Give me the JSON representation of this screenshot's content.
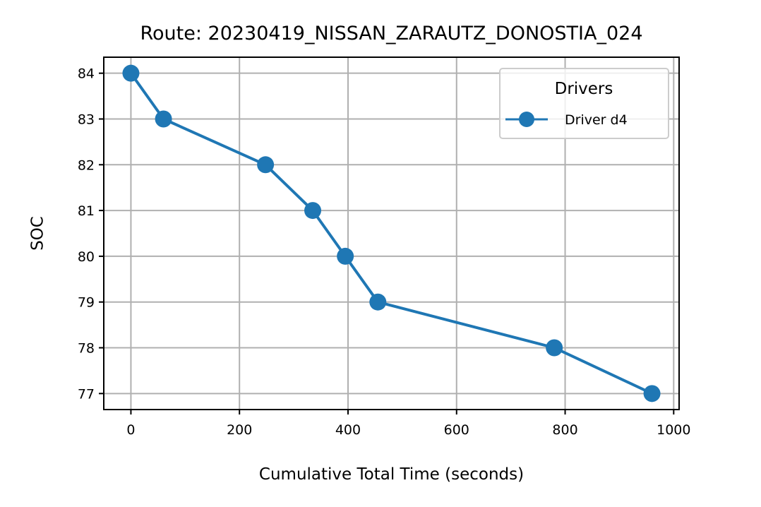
{
  "chart_data": {
    "type": "line",
    "title": "Route: 20230419_NISSAN_ZARAUTZ_DONOSTIA_024",
    "xlabel": "Cumulative Total Time (seconds)",
    "ylabel": "SOC",
    "xlim": [
      -50,
      1010
    ],
    "ylim": [
      76.65,
      84.35
    ],
    "xticks": [
      0,
      200,
      400,
      600,
      800,
      1000
    ],
    "yticks": [
      77,
      78,
      79,
      80,
      81,
      82,
      83,
      84
    ],
    "grid": true,
    "legend": {
      "title": "Drivers",
      "placement": "top-right"
    },
    "series": [
      {
        "name": "Driver d4",
        "color": "#1f77b4",
        "marker": "circle",
        "x": [
          0,
          60,
          248,
          335,
          395,
          455,
          780,
          960
        ],
        "y": [
          84,
          83,
          82,
          81,
          80,
          79,
          78,
          77
        ]
      }
    ]
  }
}
